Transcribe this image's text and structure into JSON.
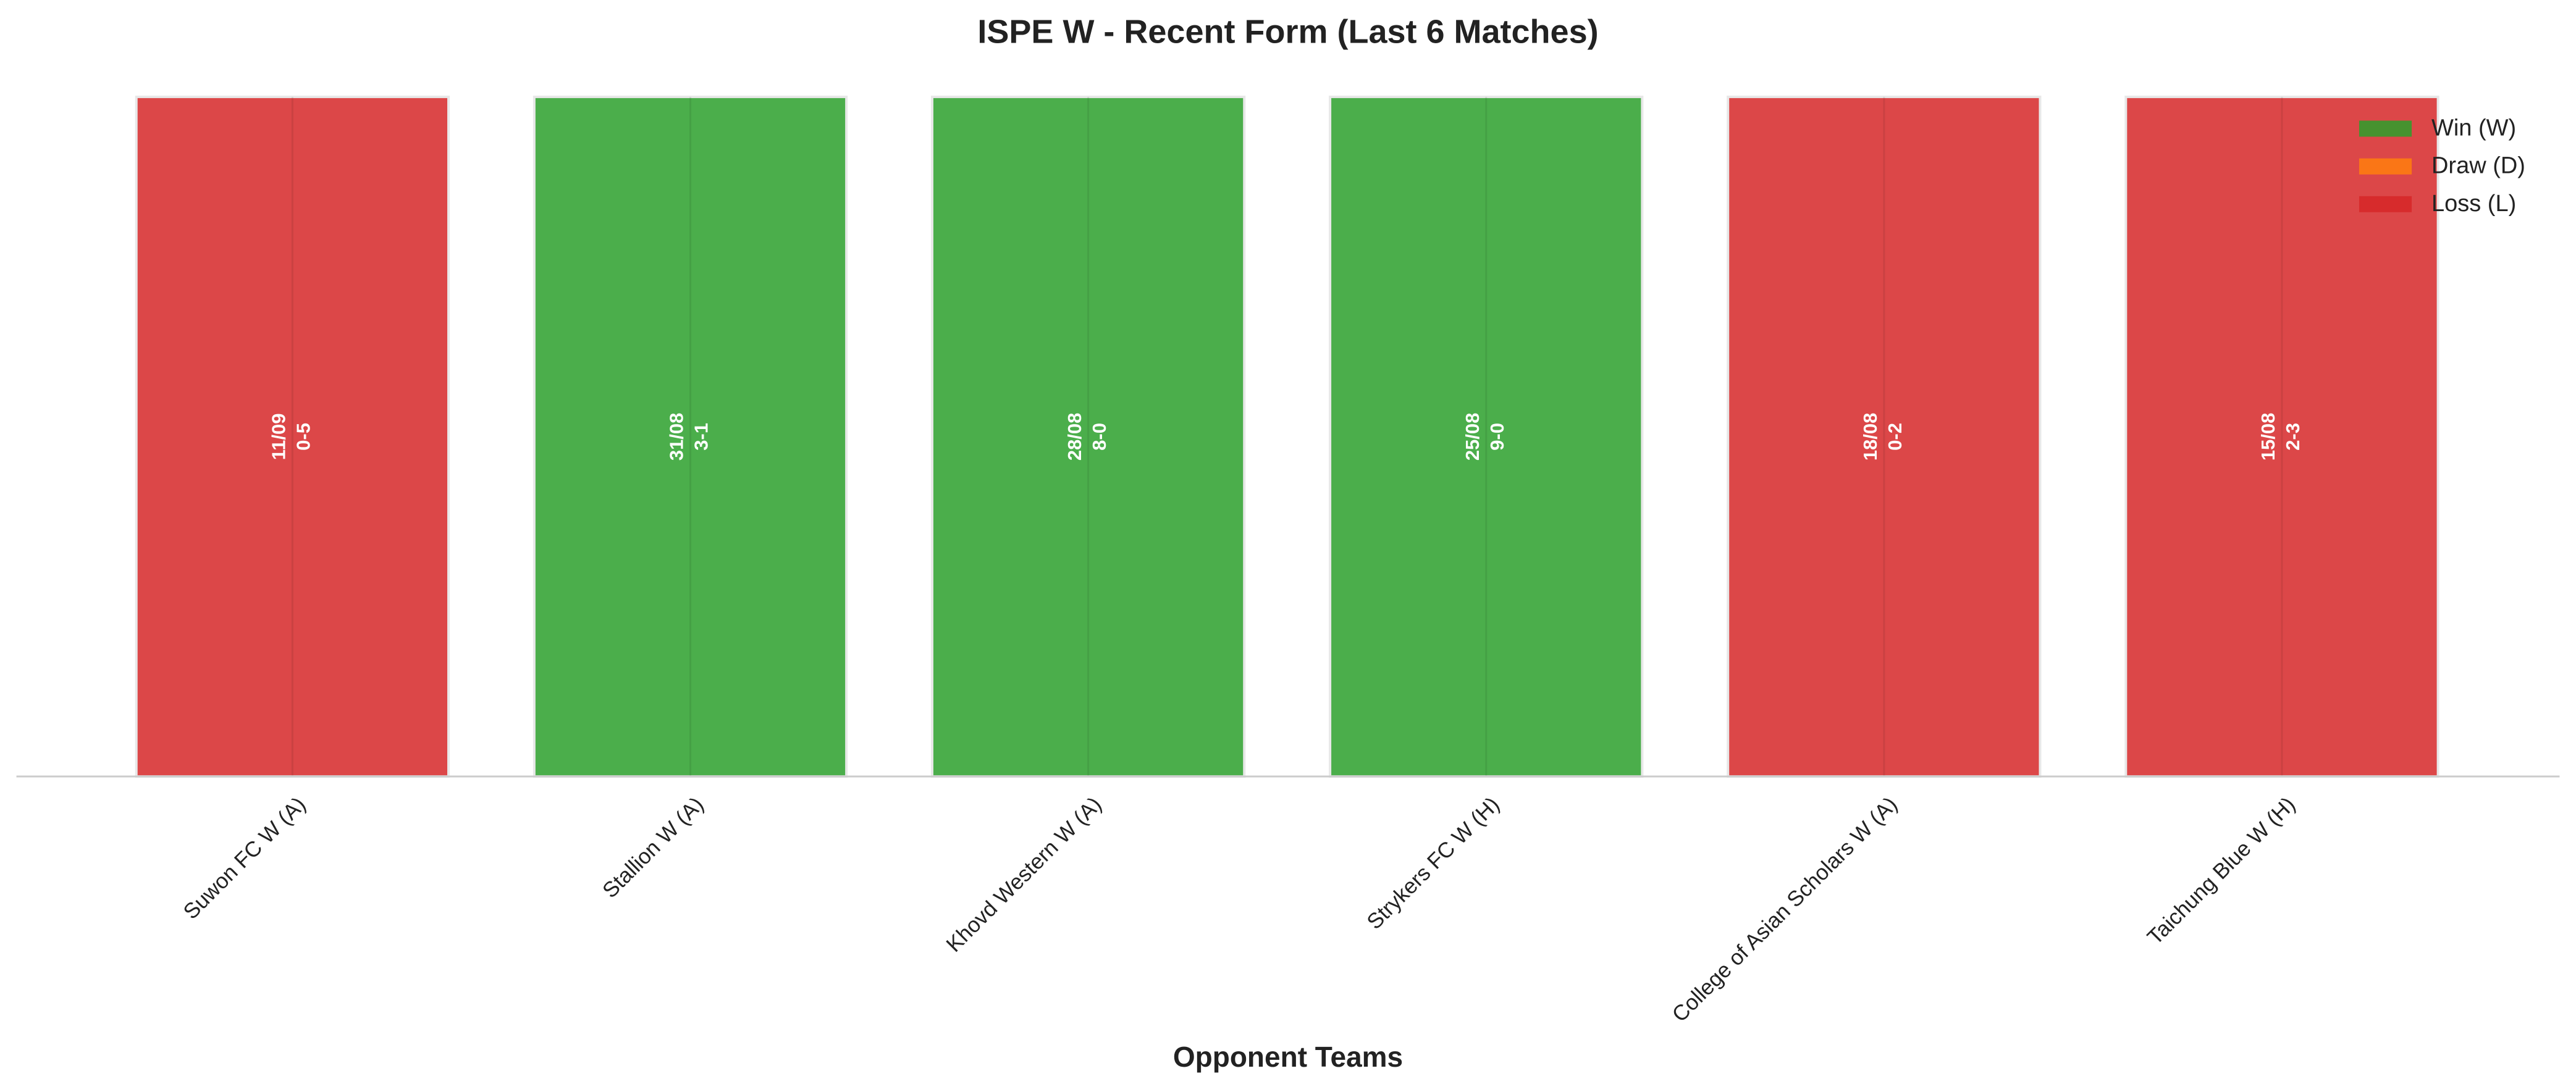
{
  "chart_data": {
    "type": "bar",
    "title": "ISPE W - Recent Form (Last 6 Matches)",
    "xlabel": "Opponent Teams",
    "categories": [
      "Suwon FC W (A)",
      "Stallion W (A)",
      "Khovd Western W (A)",
      "Strykers FC W (H)",
      "College of Asian Scholars W (A)",
      "Taichung Blue W (H)"
    ],
    "values": [
      1,
      1,
      1,
      1,
      1,
      1
    ],
    "dates": [
      "11/09",
      "31/08",
      "28/08",
      "25/08",
      "18/08",
      "15/08"
    ],
    "scores": [
      "0-5",
      "3-1",
      "8-0",
      "9-0",
      "0-2",
      "2-3"
    ],
    "colors": [
      "#d62728",
      "#2ca02c",
      "#2ca02c",
      "#2ca02c",
      "#d62728",
      "#d62728"
    ],
    "ylim": [
      0,
      1
    ],
    "legend": [
      {
        "name": "Win (W)",
        "color": "#2ca02c"
      },
      {
        "name": "Draw (D)",
        "color": "#ff7f0e"
      },
      {
        "name": "Loss (L)",
        "color": "#d62728"
      }
    ],
    "legend_position": "upper right"
  }
}
